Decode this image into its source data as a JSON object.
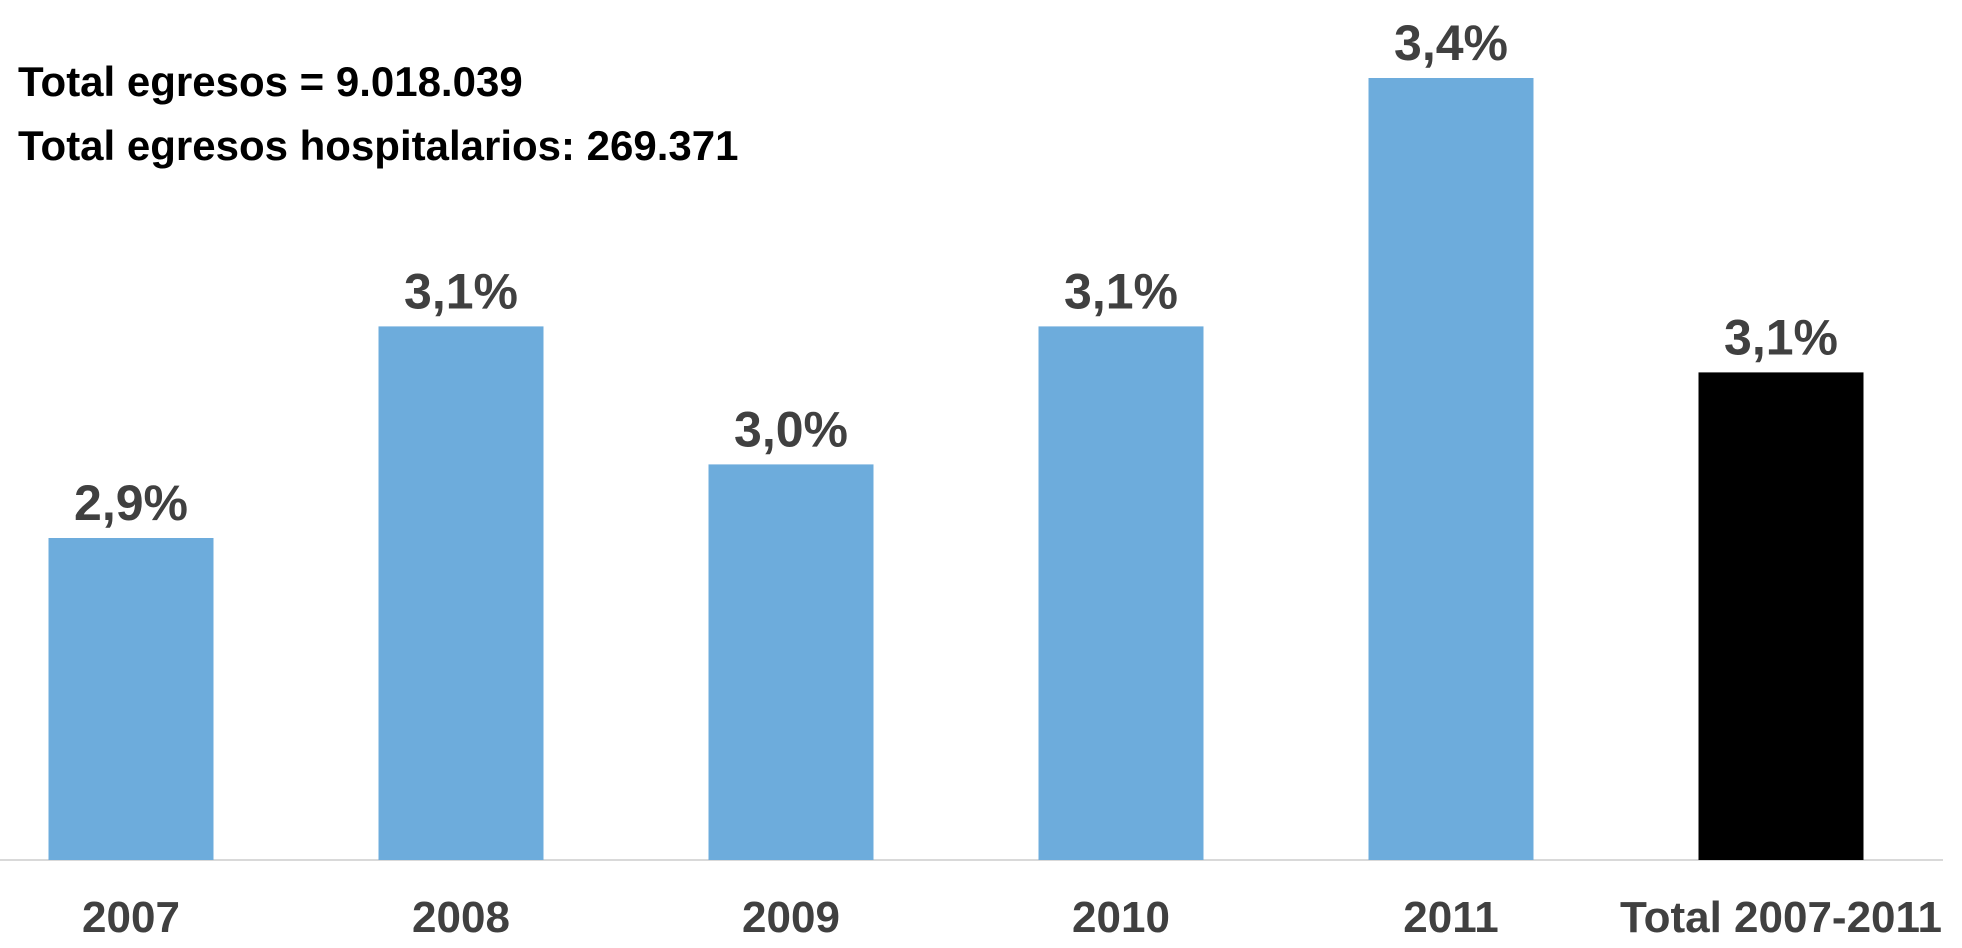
{
  "chart_data": {
    "type": "bar",
    "annotations": [
      "Total egresos = 9.018.039",
      "Total egresos hospitalarios: 269.371"
    ],
    "categories": [
      "2007",
      "2008",
      "2009",
      "2010",
      "2011",
      "Total 2007-2011"
    ],
    "values": [
      2.9,
      3.13,
      2.98,
      3.13,
      3.4,
      3.08
    ],
    "value_labels": [
      "2,9%",
      "3,1%",
      "3,0%",
      "3,1%",
      "3,4%",
      "3,1%"
    ],
    "colors": [
      "#6dacdc",
      "#6dacdc",
      "#6dacdc",
      "#6dacdc",
      "#6dacdc",
      "#000000"
    ],
    "ylim": [
      2.55,
      3.4
    ]
  }
}
